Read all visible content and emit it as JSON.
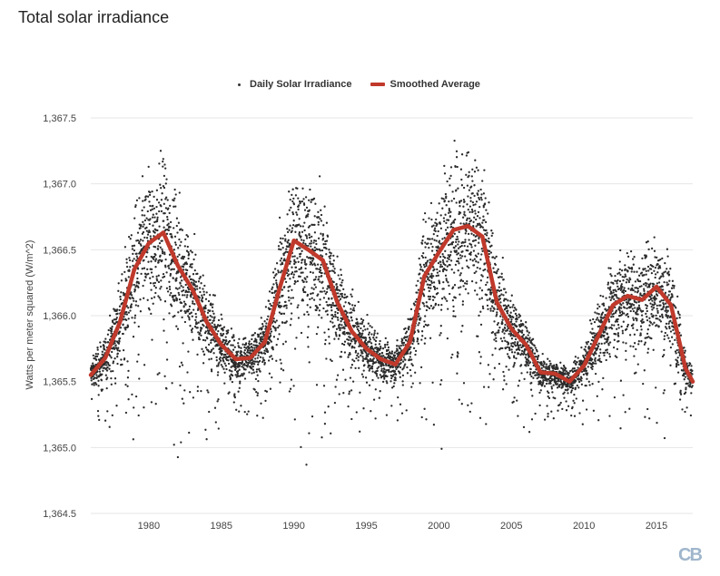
{
  "header": {
    "title": "Total solar irradiance"
  },
  "legend": {
    "points_label": "Daily Solar Irradiance",
    "line_label": "Smoothed Average"
  },
  "brand": {
    "logo_text": "CB"
  },
  "colors": {
    "points": "#2b2b2b",
    "line": "#c0392b",
    "grid": "#e6e6e6",
    "axis_text": "#444444"
  },
  "chart_data": {
    "type": "scatter",
    "title": "Total solar irradiance",
    "xlabel": "",
    "ylabel": "Watts per meter squared (W/m^2)",
    "xlim": [
      1976,
      2017.5
    ],
    "ylim": [
      1364.5,
      1367.5
    ],
    "x_ticks": [
      1980,
      1985,
      1990,
      1995,
      2000,
      2005,
      2010,
      2015
    ],
    "y_ticks": [
      1364.5,
      1365.0,
      1365.5,
      1366.0,
      1366.5,
      1367.0,
      1367.5
    ],
    "y_tick_labels": [
      "1,364.5",
      "1,365.0",
      "1,365.5",
      "1,366.0",
      "1,366.5",
      "1,367.0",
      "1,367.5"
    ],
    "grid": true,
    "legend_position": "top-center",
    "series": [
      {
        "name": "Smoothed Average",
        "kind": "line",
        "x": [
          1976,
          1977,
          1978,
          1979,
          1980,
          1981,
          1982,
          1983,
          1984,
          1985,
          1986,
          1987,
          1988,
          1989,
          1990,
          1991,
          1992,
          1993,
          1994,
          1995,
          1996,
          1997,
          1998,
          1999,
          2000,
          2001,
          2002,
          2003,
          2004,
          2005,
          2006,
          2007,
          2008,
          2009,
          2010,
          2011,
          2012,
          2013,
          2014,
          2015,
          2016,
          2017,
          2017.5
        ],
        "values": [
          1365.55,
          1365.68,
          1365.95,
          1366.35,
          1366.55,
          1366.63,
          1366.38,
          1366.2,
          1365.95,
          1365.78,
          1365.67,
          1365.68,
          1365.8,
          1366.2,
          1366.57,
          1366.5,
          1366.42,
          1366.1,
          1365.88,
          1365.75,
          1365.67,
          1365.63,
          1365.8,
          1366.3,
          1366.48,
          1366.65,
          1366.68,
          1366.6,
          1366.1,
          1365.9,
          1365.78,
          1365.57,
          1365.56,
          1365.5,
          1365.62,
          1365.85,
          1366.08,
          1366.15,
          1366.12,
          1366.22,
          1366.08,
          1365.6,
          1365.5
        ]
      },
      {
        "name": "Daily Solar Irradiance",
        "kind": "points",
        "note": "dense daily scatter around the smoothed average",
        "spread_quiet": 0.12,
        "spread_active": 0.55
      }
    ]
  }
}
